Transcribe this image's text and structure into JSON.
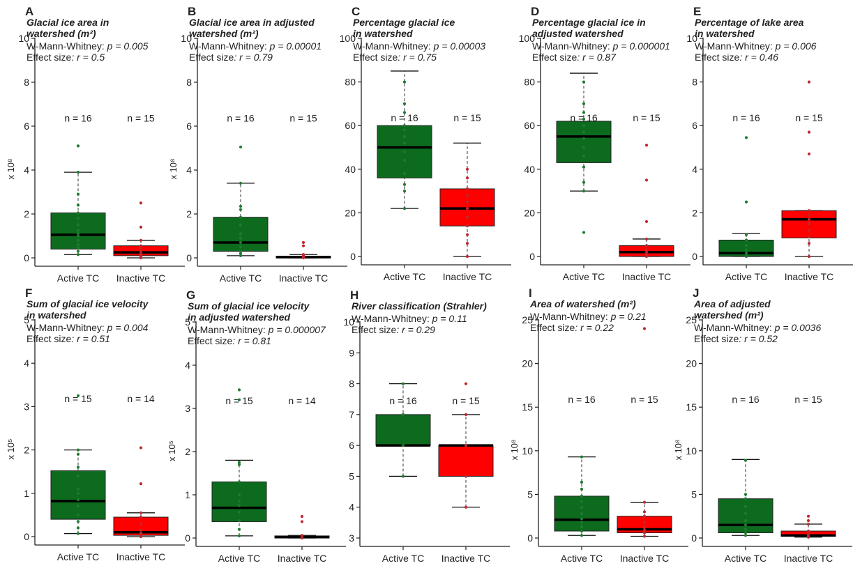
{
  "colors": {
    "active": "#0d6b1e",
    "inactive": "#ff0000",
    "active_dot": "#1f7a30",
    "inactive_dot": "#c0282d",
    "axis": "#222222"
  },
  "chart_data": [
    {
      "type": "box",
      "panel": "A",
      "title_lines": [
        "Glacial ice area in",
        "watershed (m²)"
      ],
      "test_label": "W-Mann-Whitney: ",
      "p_text": "p = 0.005",
      "effect_label": "Effect size",
      "r_text": ": r = 0.5",
      "ylabel": "x 10⁸",
      "ylim": [
        0,
        10
      ],
      "yticks": [
        0,
        2,
        4,
        6,
        8,
        10
      ],
      "categories": [
        "Active TC",
        "Inactive TC"
      ],
      "n_labels": [
        "n = 16",
        "n = 15"
      ],
      "boxes": [
        {
          "category": "Active TC",
          "low": 0.15,
          "q1": 0.4,
          "median": 1.05,
          "q3": 2.05,
          "high": 3.9,
          "points": [
            0.15,
            0.3,
            0.45,
            0.6,
            0.8,
            1.0,
            1.1,
            1.25,
            1.5,
            1.8,
            2.05,
            2.4,
            2.9,
            3.9,
            5.1
          ]
        },
        {
          "category": "Inactive TC",
          "low": 0.0,
          "q1": 0.1,
          "median": 0.25,
          "q3": 0.55,
          "high": 0.8,
          "points": [
            0.0,
            0.05,
            0.1,
            0.15,
            0.2,
            0.3,
            0.45,
            0.55,
            0.8,
            1.4,
            2.5
          ]
        }
      ]
    },
    {
      "type": "box",
      "panel": "B",
      "title_lines": [
        "Glacial ice area in adjusted",
        "watershed (m²)"
      ],
      "test_label": "W-Mann-Whitney: ",
      "p_text": "p = 0.00001",
      "effect_label": "Effect size",
      "r_text": ": r = 0.79",
      "ylabel": "x 10⁸",
      "ylim": [
        0,
        10
      ],
      "yticks": [
        0,
        2,
        4,
        6,
        8,
        10
      ],
      "categories": [
        "Active TC",
        "Inactive TC"
      ],
      "n_labels": [
        "n = 16",
        "n = 15"
      ],
      "boxes": [
        {
          "category": "Active TC",
          "low": 0.1,
          "q1": 0.3,
          "median": 0.7,
          "q3": 1.85,
          "high": 3.4,
          "points": [
            0.1,
            0.2,
            0.3,
            0.5,
            0.7,
            0.9,
            1.1,
            1.5,
            1.85,
            2.2,
            2.35,
            3.4,
            5.05
          ]
        },
        {
          "category": "Inactive TC",
          "low": 0.0,
          "q1": 0.0,
          "median": 0.03,
          "q3": 0.08,
          "high": 0.15,
          "points": [
            0.0,
            0.02,
            0.05,
            0.1,
            0.15,
            0.55,
            0.7
          ]
        }
      ]
    },
    {
      "type": "box",
      "panel": "C",
      "title_lines": [
        "Percentage glacial ice",
        "in watershed"
      ],
      "test_label": "W-Mann-Whitney: ",
      "p_text": "p = 0.00003",
      "effect_label": "Effect size",
      "r_text": ": r = 0.75",
      "ylabel": "",
      "ylim": [
        0,
        100
      ],
      "yticks": [
        0,
        20,
        40,
        60,
        80,
        100
      ],
      "categories": [
        "Active TC",
        "Inactive TC"
      ],
      "n_labels": [
        "n = 16",
        "n = 15"
      ],
      "boxes": [
        {
          "category": "Active TC",
          "low": 22,
          "q1": 36,
          "median": 50,
          "q3": 60,
          "high": 85,
          "points": [
            22,
            30,
            33,
            38,
            44,
            48,
            52,
            55,
            58,
            60,
            66,
            70,
            80
          ]
        },
        {
          "category": "Inactive TC",
          "low": 0,
          "q1": 14,
          "median": 22,
          "q3": 31,
          "high": 52,
          "points": [
            0,
            6,
            10,
            14,
            18,
            22,
            25,
            28,
            31,
            36,
            40
          ]
        }
      ]
    },
    {
      "type": "box",
      "panel": "D",
      "title_lines": [
        "Percentage glacial ice in",
        "adjusted watershed"
      ],
      "test_label": "W-Mann-Whitney: ",
      "p_text": "p = 0.000001",
      "effect_label": "Effect size",
      "r_text": ": r = 0.87",
      "ylabel": "",
      "ylim": [
        0,
        100
      ],
      "yticks": [
        0,
        20,
        40,
        60,
        80,
        100
      ],
      "categories": [
        "Active TC",
        "Inactive TC"
      ],
      "n_labels": [
        "n = 16",
        "n = 15"
      ],
      "boxes": [
        {
          "category": "Active TC",
          "low": 30,
          "q1": 43,
          "median": 55,
          "q3": 62,
          "high": 84,
          "points": [
            11,
            30,
            34,
            41,
            46,
            50,
            54,
            57,
            60,
            63,
            66,
            70,
            80
          ]
        },
        {
          "category": "Inactive TC",
          "low": 0,
          "q1": 0,
          "median": 2,
          "q3": 5,
          "high": 8,
          "points": [
            0,
            1,
            2,
            3,
            5,
            8,
            16,
            35,
            51
          ]
        }
      ]
    },
    {
      "type": "box",
      "panel": "E",
      "title_lines": [
        "Percentage of lake area",
        "in watershed"
      ],
      "test_label": "W-Mann-Whitney: ",
      "p_text": "p = 0.006",
      "effect_label": "Effect size",
      "r_text": ": r = 0.46",
      "ylabel": "",
      "ylim": [
        0,
        10
      ],
      "yticks": [
        0,
        2,
        4,
        6,
        8,
        10
      ],
      "categories": [
        "Active TC",
        "Inactive TC"
      ],
      "n_labels": [
        "n = 16",
        "n = 15"
      ],
      "boxes": [
        {
          "category": "Active TC",
          "low": 0.0,
          "q1": 0.0,
          "median": 0.15,
          "q3": 0.75,
          "high": 1.05,
          "points": [
            0.0,
            0.05,
            0.15,
            0.3,
            0.5,
            0.75,
            1.0,
            2.5,
            5.45
          ]
        },
        {
          "category": "Inactive TC",
          "low": 0.0,
          "q1": 0.85,
          "median": 1.7,
          "q3": 2.1,
          "high": 2.1,
          "points": [
            0.0,
            0.6,
            0.9,
            1.2,
            1.5,
            1.7,
            1.9,
            2.1,
            4.7,
            5.7,
            8.0
          ]
        }
      ]
    },
    {
      "type": "box",
      "panel": "F",
      "title_lines": [
        "Sum of glacial ice velocity",
        "in watershed"
      ],
      "test_label": "W-Mann-Whitney: ",
      "p_text": "p = 0.004",
      "effect_label": "Effect size",
      "r_text": ": r = 0.51",
      "ylabel": "x 10⁵",
      "ylim": [
        0,
        5
      ],
      "yticks": [
        0,
        1,
        2,
        3,
        4,
        5
      ],
      "categories": [
        "Active TC",
        "Inactive TC"
      ],
      "n_labels": [
        "n = 15",
        "n = 14"
      ],
      "boxes": [
        {
          "category": "Active TC",
          "low": 0.07,
          "q1": 0.4,
          "median": 0.82,
          "q3": 1.52,
          "high": 2.0,
          "points": [
            0.07,
            0.2,
            0.35,
            0.5,
            0.7,
            0.85,
            1.0,
            1.1,
            1.4,
            1.6,
            1.9,
            2.0,
            3.25
          ]
        },
        {
          "category": "Inactive TC",
          "low": 0.0,
          "q1": 0.03,
          "median": 0.1,
          "q3": 0.45,
          "high": 0.55,
          "points": [
            0.0,
            0.03,
            0.08,
            0.15,
            0.3,
            0.45,
            0.55,
            1.22,
            2.05
          ]
        }
      ]
    },
    {
      "type": "box",
      "panel": "G",
      "title_lines": [
        "Sum of glacial ice velocity",
        "in adjusted watershed"
      ],
      "test_label": "W-Mann-Whitney: ",
      "p_text": "p = 0.000007",
      "effect_label": "Effect size",
      "r_text": ": r = 0.81",
      "ylabel": "x 10⁵",
      "ylim": [
        0,
        5
      ],
      "yticks": [
        0,
        1,
        2,
        3,
        4,
        5
      ],
      "categories": [
        "Active TC",
        "Inactive TC"
      ],
      "n_labels": [
        "n = 15",
        "n = 14"
      ],
      "boxes": [
        {
          "category": "Active TC",
          "low": 0.05,
          "q1": 0.38,
          "median": 0.7,
          "q3": 1.3,
          "high": 1.8,
          "points": [
            0.05,
            0.2,
            0.4,
            0.6,
            0.75,
            0.85,
            1.0,
            1.3,
            1.7,
            1.75,
            3.2,
            3.43
          ]
        },
        {
          "category": "Inactive TC",
          "low": 0.0,
          "q1": 0.0,
          "median": 0.02,
          "q3": 0.05,
          "high": 0.06,
          "points": [
            0.0,
            0.02,
            0.04,
            0.06,
            0.38,
            0.5
          ]
        }
      ]
    },
    {
      "type": "box",
      "panel": "H",
      "title_lines": [
        "River classification (Strahler)"
      ],
      "test_label": "W-Mann-Whitney: ",
      "p_text": "p = 0.11",
      "effect_label": "Effect size",
      "r_text": ": r = 0.29",
      "ylabel": "",
      "ylim": [
        3,
        10
      ],
      "yticks": [
        3,
        4,
        5,
        6,
        7,
        8,
        9,
        10
      ],
      "categories": [
        "Active TC",
        "Inactive TC"
      ],
      "n_labels": [
        "n = 16",
        "n = 15"
      ],
      "boxes": [
        {
          "category": "Active TC",
          "low": 5,
          "q1": 6,
          "median": 6,
          "q3": 7,
          "high": 8,
          "points": [
            5,
            6,
            7,
            8
          ]
        },
        {
          "category": "Inactive TC",
          "low": 4,
          "q1": 5,
          "median": 6,
          "q3": 6,
          "high": 7,
          "points": [
            4,
            5,
            6,
            7,
            8
          ]
        }
      ]
    },
    {
      "type": "box",
      "panel": "I",
      "title_lines": [
        "Area of watershed (m²)"
      ],
      "test_label": "W-Mann-Whitney: ",
      "p_text": "p = 0.21",
      "effect_label": "Effect size",
      "r_text": ": r = 0.22",
      "ylabel": "x 10⁸",
      "ylim": [
        0,
        25
      ],
      "yticks": [
        0,
        5,
        10,
        15,
        20,
        25
      ],
      "categories": [
        "Active TC",
        "Inactive TC"
      ],
      "n_labels": [
        "n = 16",
        "n = 15"
      ],
      "boxes": [
        {
          "category": "Active TC",
          "low": 0.3,
          "q1": 0.8,
          "median": 2.1,
          "q3": 4.8,
          "high": 9.3,
          "points": [
            0.3,
            0.8,
            1.3,
            1.8,
            2.2,
            2.8,
            3.5,
            4.2,
            4.8,
            5.6,
            6.4,
            9.3
          ]
        },
        {
          "category": "Inactive TC",
          "low": 0.2,
          "q1": 0.6,
          "median": 1.0,
          "q3": 2.5,
          "high": 4.1,
          "points": [
            0.2,
            0.6,
            0.9,
            1.2,
            1.8,
            2.5,
            3.0,
            4.1,
            24.0
          ]
        }
      ]
    },
    {
      "type": "box",
      "panel": "J",
      "title_lines": [
        "Area of adjusted",
        "watershed (m²)"
      ],
      "test_label": "W-Mann-Whitney: ",
      "p_text": "p = 0.0036",
      "effect_label": "Effect size",
      "r_text": ": r = 0.52",
      "ylabel": "x 10⁸",
      "ylim": [
        0,
        25
      ],
      "yticks": [
        0,
        5,
        10,
        15,
        20,
        25
      ],
      "categories": [
        "Active TC",
        "Inactive TC"
      ],
      "n_labels": [
        "n = 16",
        "n = 15"
      ],
      "boxes": [
        {
          "category": "Active TC",
          "low": 0.3,
          "q1": 0.6,
          "median": 1.5,
          "q3": 4.5,
          "high": 9.0,
          "points": [
            0.3,
            0.6,
            1.0,
            1.5,
            2.0,
            2.8,
            3.6,
            4.5,
            5.0,
            8.9
          ]
        },
        {
          "category": "Inactive TC",
          "low": 0.1,
          "q1": 0.2,
          "median": 0.3,
          "q3": 0.8,
          "high": 1.6,
          "points": [
            0.1,
            0.2,
            0.4,
            0.8,
            1.6,
            2.0,
            2.5
          ]
        }
      ]
    }
  ]
}
